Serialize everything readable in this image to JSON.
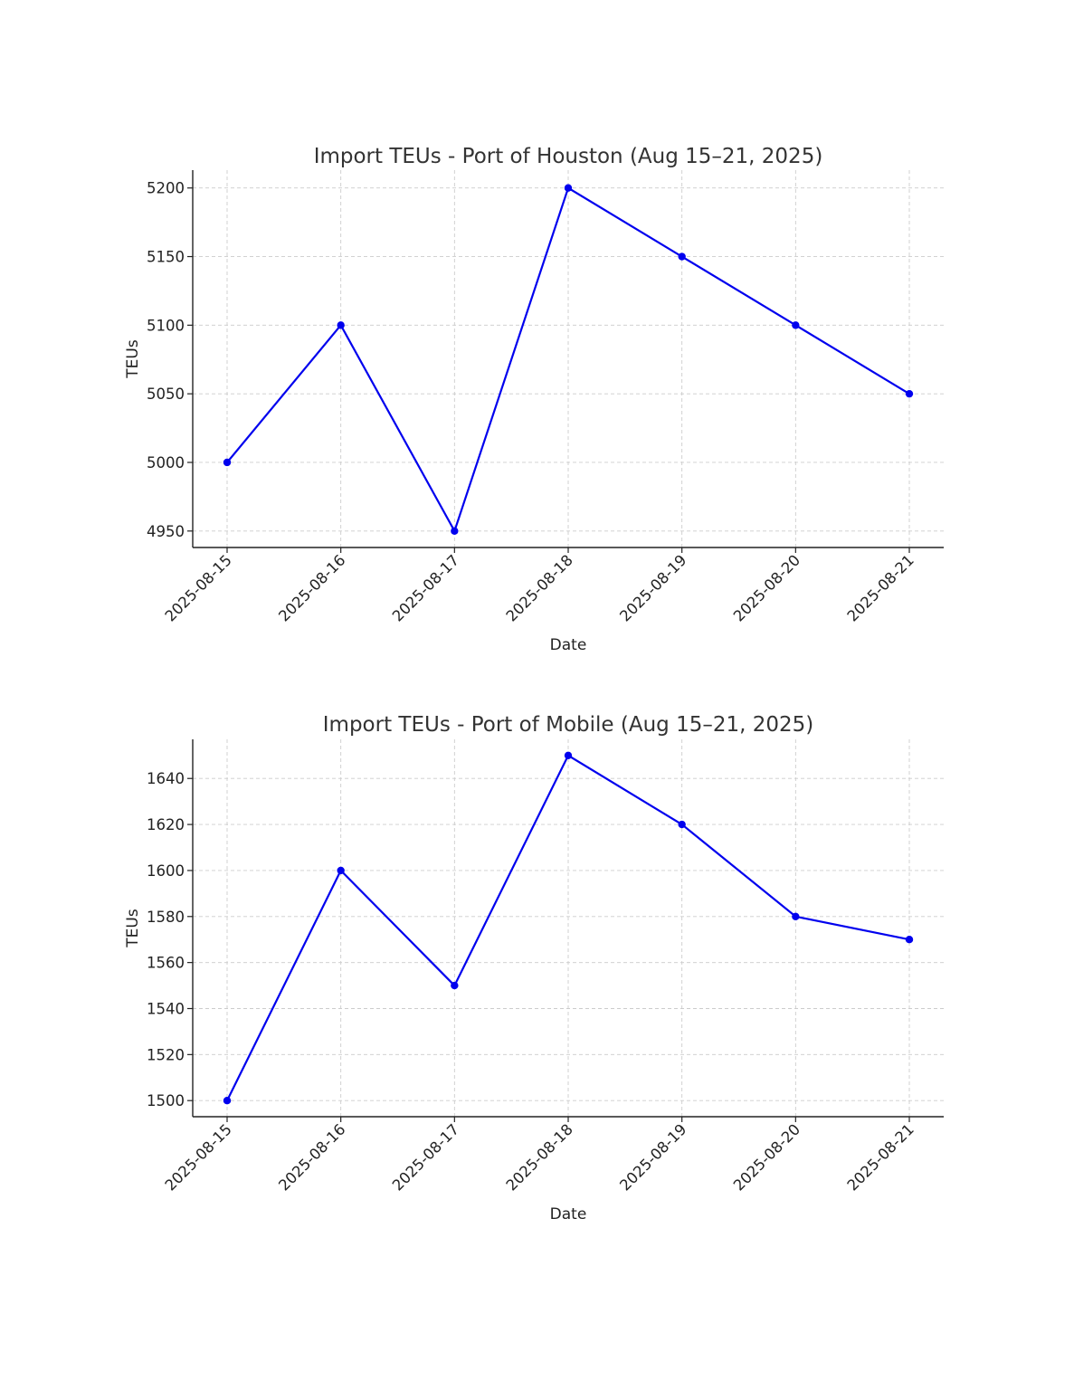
{
  "chart_data": [
    {
      "type": "line",
      "title": "Import TEUs - Port of Houston (Aug 15–21, 2025)",
      "xlabel": "Date",
      "ylabel": "TEUs",
      "categories": [
        "2025-08-15",
        "2025-08-16",
        "2025-08-17",
        "2025-08-18",
        "2025-08-19",
        "2025-08-20",
        "2025-08-21"
      ],
      "series": [
        {
          "values": [
            5000,
            5100,
            4950,
            5200,
            5150,
            5100,
            5050
          ]
        }
      ],
      "ylim": [
        4938,
        5213
      ],
      "yticks": [
        4950,
        5000,
        5050,
        5100,
        5150,
        5200
      ],
      "grid": true,
      "marker": "circle",
      "color": "#0000ee"
    },
    {
      "type": "line",
      "title": "Import TEUs - Port of Mobile (Aug 15–21, 2025)",
      "xlabel": "Date",
      "ylabel": "TEUs",
      "categories": [
        "2025-08-15",
        "2025-08-16",
        "2025-08-17",
        "2025-08-18",
        "2025-08-19",
        "2025-08-20",
        "2025-08-21"
      ],
      "series": [
        {
          "values": [
            1500,
            1600,
            1550,
            1650,
            1620,
            1580,
            1570
          ]
        }
      ],
      "ylim": [
        1493,
        1657
      ],
      "yticks": [
        1500,
        1520,
        1540,
        1560,
        1580,
        1600,
        1620,
        1640
      ],
      "grid": true,
      "marker": "circle",
      "color": "#0000ee"
    }
  ]
}
